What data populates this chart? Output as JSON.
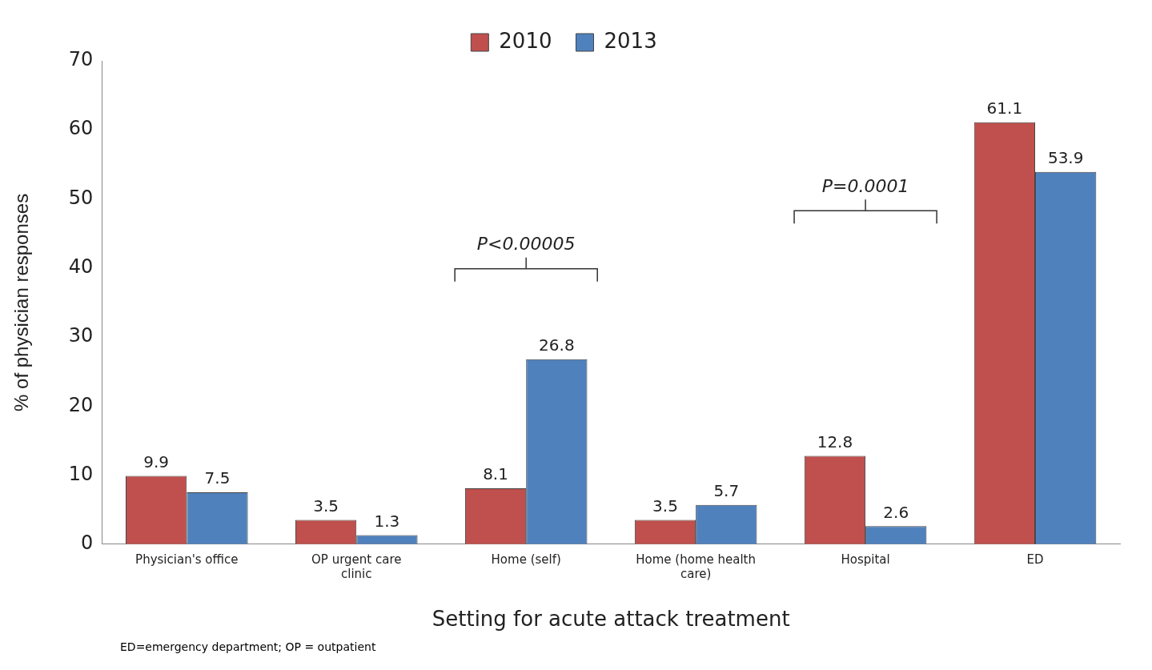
{
  "chart_data": {
    "type": "bar",
    "xlabel": "Setting for acute attack treatment",
    "ylabel": "% of physician responses",
    "categories": [
      "Physician's office",
      "OP urgent care clinic",
      "Home (self)",
      "Home (home health care)",
      "Hospital",
      "ED"
    ],
    "series": [
      {
        "name": "2010",
        "color": "#c0504d",
        "values": [
          9.9,
          3.5,
          8.1,
          3.5,
          12.8,
          61.1
        ]
      },
      {
        "name": "2013",
        "color": "#4f81bd",
        "values": [
          7.5,
          1.3,
          26.8,
          5.7,
          2.6,
          53.9
        ]
      }
    ],
    "ylim": [
      0,
      70
    ],
    "yticks": [
      0,
      10,
      20,
      30,
      40,
      50,
      60,
      70
    ],
    "grid": false,
    "legend": "top",
    "data_labels": true,
    "annotations": [
      "P<0.00005",
      "P=0.0001",
      "ED=emergency department; OP = outpatient"
    ]
  }
}
